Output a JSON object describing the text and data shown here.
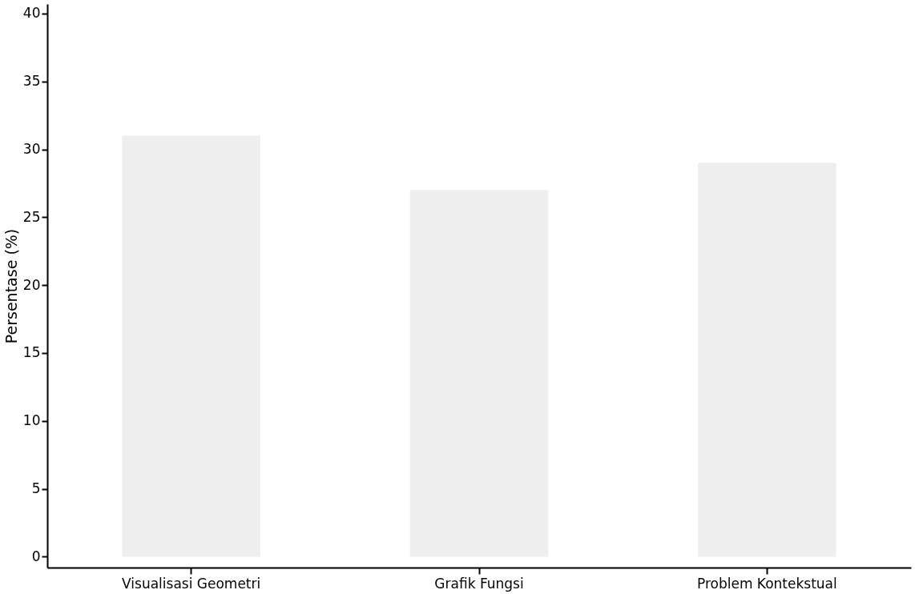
{
  "chart_data": {
    "type": "bar",
    "ylabel": "Persentase (%)",
    "categories": [
      "Visualisasi Geometri",
      "Grafik Fungsi",
      "Problem Kontekstual"
    ],
    "values": [
      31,
      27,
      29
    ],
    "color": "#eeeeee",
    "ylim": [
      -0.8,
      40.7
    ],
    "yticks": [
      0,
      5,
      10,
      15,
      20,
      25,
      30,
      35,
      40
    ],
    "grid": false
  }
}
